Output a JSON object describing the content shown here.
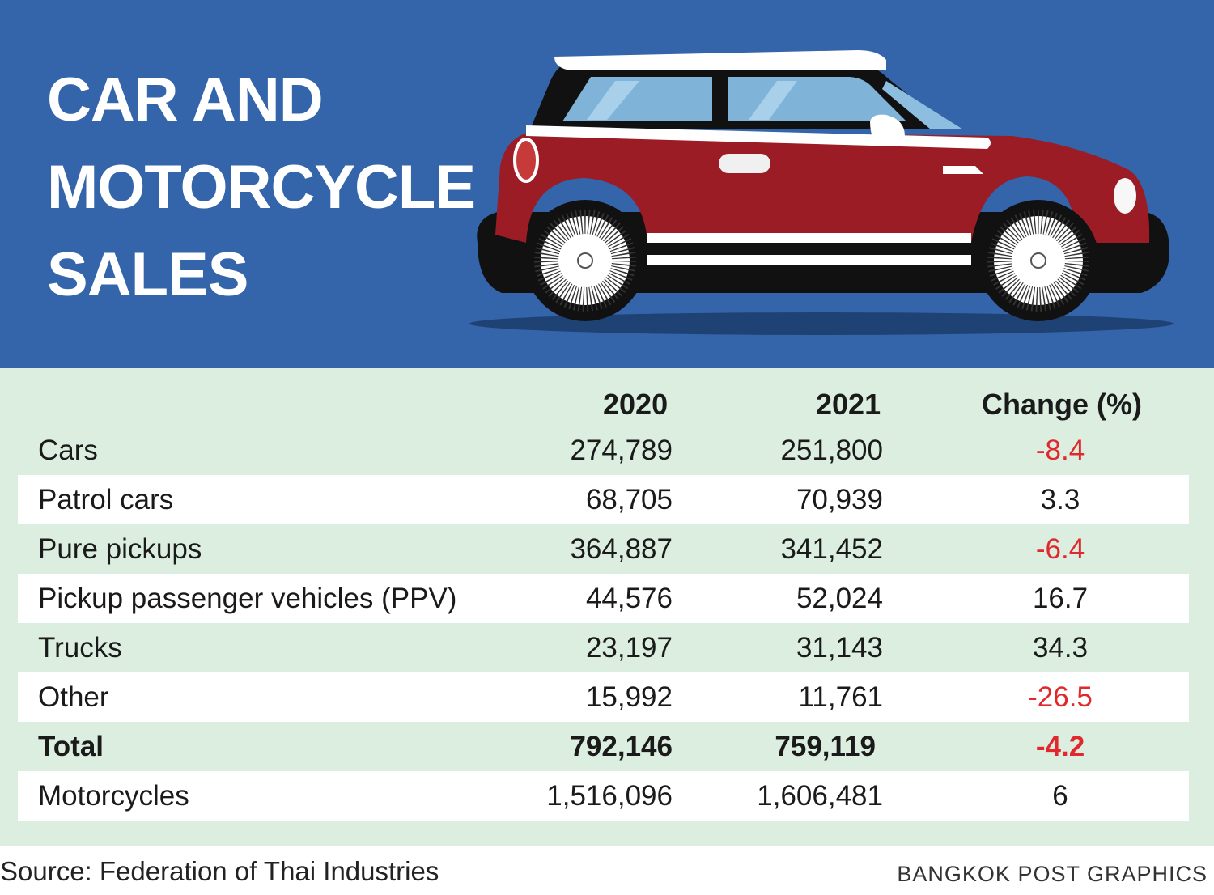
{
  "title_lines": [
    "CAR AND",
    "MOTORCYCLE",
    "SALES"
  ],
  "chart_data": {
    "type": "table",
    "columns": [
      "2020",
      "2021",
      "Change (%)"
    ],
    "rows": [
      {
        "label": "Cars",
        "y2020": "274,789",
        "y2021": "251,800",
        "change": "-8.4"
      },
      {
        "label": "Patrol cars",
        "y2020": "68,705",
        "y2021": "70,939",
        "change": "3.3"
      },
      {
        "label": "Pure pickups",
        "y2020": "364,887",
        "y2021": "341,452",
        "change": "-6.4"
      },
      {
        "label": "Pickup passenger vehicles (PPV)",
        "y2020": "44,576",
        "y2021": "52,024",
        "change": "16.7"
      },
      {
        "label": "Trucks",
        "y2020": "23,197",
        "y2021": "31,143",
        "change": "34.3"
      },
      {
        "label": "Other",
        "y2020": "15,992",
        "y2021": "11,761",
        "change": "-26.5"
      },
      {
        "label": "Total",
        "y2020": "792,146",
        "y2021": "759,119",
        "change": "-4.2"
      },
      {
        "label": "Motorcycles",
        "y2020": "1,516,096",
        "y2021": "1,606,481",
        "change": "6"
      }
    ]
  },
  "colors": {
    "header_bg": "#3464aa",
    "table_bg": "#dbeedf",
    "stripe": "#ffffff",
    "negative": "#e0282d",
    "car_body": "#9b1c25"
  },
  "illustration": "red-mini-car-icon",
  "source": "Source: Federation of Thai Industries",
  "credit": "BANGKOK POST GRAPHICS"
}
